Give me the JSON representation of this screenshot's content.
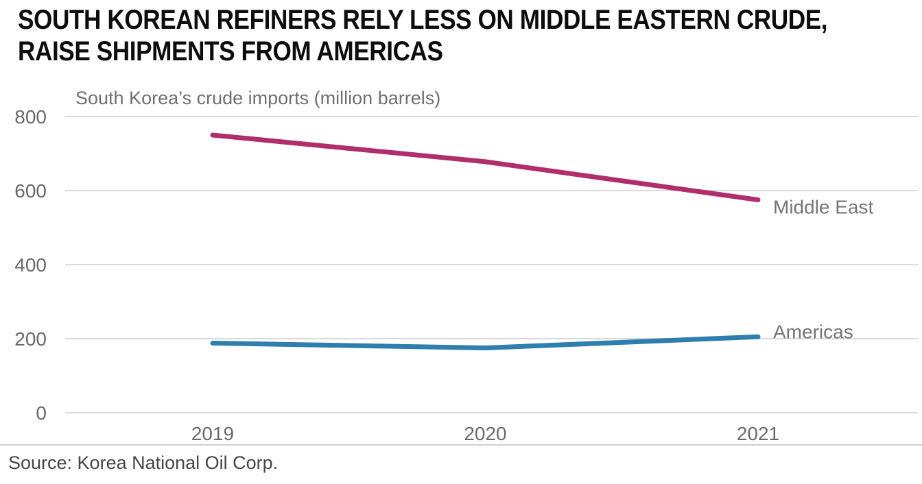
{
  "page": {
    "title": "SOUTH KOREAN REFINERS RELY LESS ON MIDDLE EASTERN CRUDE,\nRAISE SHIPMENTS FROM AMERICAS",
    "source": "Source: Korea National Oil Corp."
  },
  "chart_data": {
    "type": "line",
    "title": "South Korea’s crude imports (million barrels)",
    "categories": [
      "2019",
      "2020",
      "2021"
    ],
    "series": [
      {
        "name": "Middle East",
        "color": "#b02e6c",
        "values": [
          750,
          678,
          575
        ]
      },
      {
        "name": "Americas",
        "color": "#2e7fad",
        "values": [
          188,
          175,
          205
        ]
      }
    ],
    "ylim": [
      0,
      800
    ],
    "yticks": [
      0,
      200,
      400,
      600,
      800
    ],
    "xlabel": "",
    "grid": "horizontal-only",
    "legend_position": "end-of-line-labels",
    "axis_text_color": "#696969",
    "grid_color": "#d9d9d9",
    "label_text_color": "#757575"
  }
}
